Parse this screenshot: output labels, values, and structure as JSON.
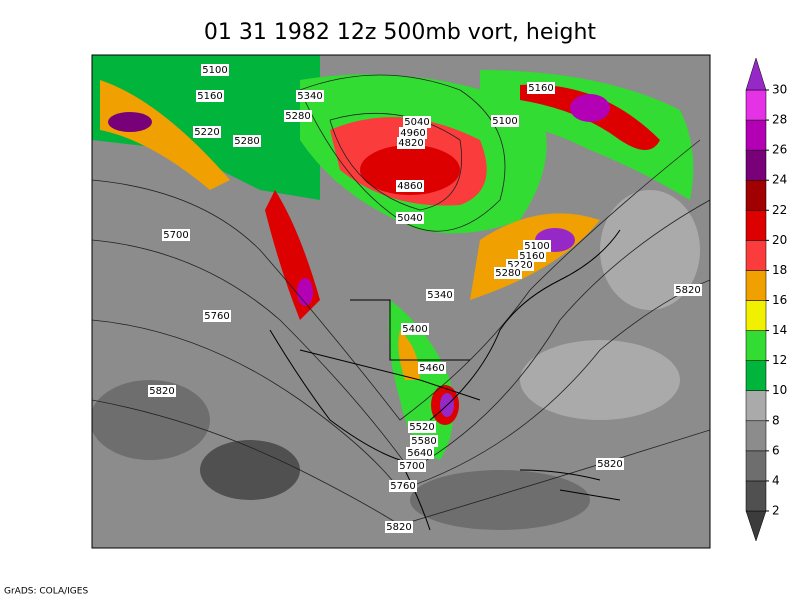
{
  "title": "01 31 1982 12z 500mb vort, height",
  "footer": "GrADS: COLA/IGES",
  "colorbar": {
    "ticks": [
      2,
      4,
      6,
      8,
      10,
      12,
      14,
      16,
      18,
      20,
      22,
      24,
      26,
      28,
      30
    ],
    "colors": [
      "#3c3c3c",
      "#505050",
      "#6e6e6e",
      "#8c8c8c",
      "#aaaaaa",
      "#00b43c",
      "#32dc32",
      "#f0f000",
      "#f0a000",
      "#fa3c3c",
      "#dc0000",
      "#a00000",
      "#780078",
      "#b400b4",
      "#e632e6",
      "#9628c8"
    ]
  },
  "contour_labels": [
    "5100",
    "5160",
    "5340",
    "5280",
    "5220",
    "5280",
    "5040",
    "4960",
    "4820",
    "4860",
    "5040",
    "5160",
    "5100",
    "5700",
    "5100",
    "5160",
    "5220",
    "5280",
    "5340",
    "5760",
    "5820",
    "5400",
    "5460",
    "5820",
    "5520",
    "5580",
    "5640",
    "5700",
    "5820",
    "5760",
    "5820"
  ]
}
